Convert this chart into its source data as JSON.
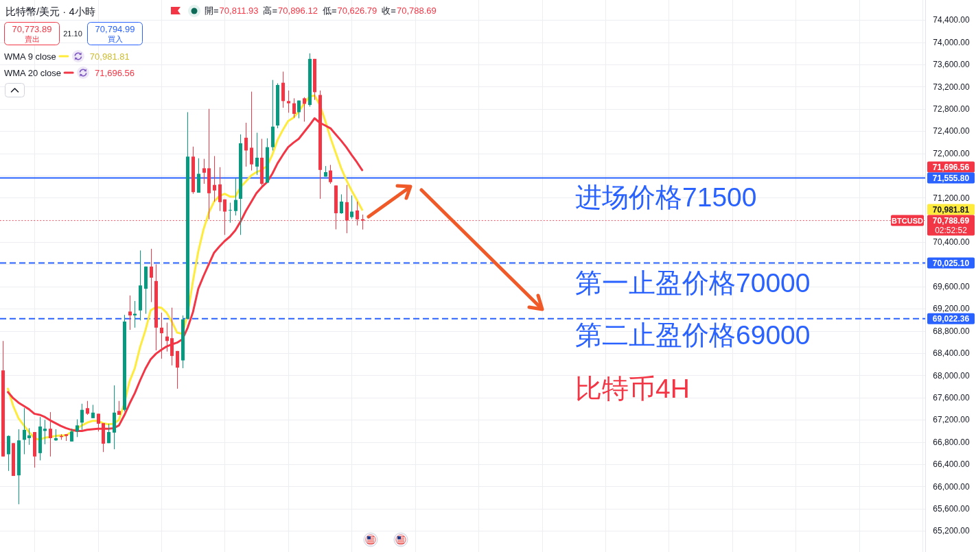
{
  "chart_data": {
    "type": "candlestick",
    "title": "比特幣/美元 · 4小時",
    "categories": [
      null,
      null,
      null,
      null,
      null,
      null,
      null,
      null,
      null,
      null,
      null,
      null,
      null,
      null,
      null,
      null,
      null,
      null,
      null,
      null,
      null,
      null,
      null,
      null,
      null,
      null,
      null,
      null,
      null,
      null,
      null,
      null,
      null,
      null,
      null,
      null,
      null,
      null,
      null,
      null,
      null,
      null,
      null,
      null,
      null,
      null,
      null,
      null,
      null,
      null,
      null,
      null,
      null,
      null,
      null,
      null,
      null,
      null,
      null,
      null,
      null,
      null,
      null,
      null,
      null,
      null,
      null,
      null,
      null,
      null,
      null,
      null,
      null,
      null,
      null,
      null,
      null,
      null,
      null,
      null,
      null,
      null,
      null,
      null,
      null,
      null,
      null,
      null,
      null,
      null,
      null,
      null,
      null,
      null,
      null,
      null,
      null,
      null,
      null,
      null,
      null,
      null,
      null,
      null,
      null,
      null,
      null,
      null,
      null,
      null,
      null,
      null,
      null,
      null,
      null,
      null,
      null,
      null,
      null,
      null,
      null,
      null,
      null,
      null,
      null,
      null,
      null,
      null,
      null,
      null,
      null,
      null,
      null,
      null,
      null,
      null,
      null,
      null,
      null,
      null,
      null,
      null,
      null,
      null,
      null,
      null,
      null,
      null,
      null,
      null,
      null,
      null,
      null,
      null,
      null,
      null,
      null,
      null,
      null,
      null,
      null,
      null,
      null,
      null,
      null,
      null,
      null,
      null,
      null,
      null,
      null,
      null,
      null,
      null,
      null
    ],
    "ohlc": [
      [
        68090,
        68620,
        66540,
        66540
      ],
      [
        66580,
        66920,
        66280,
        66910
      ],
      [
        66780,
        66780,
        66190,
        66190
      ],
      [
        66200,
        67030,
        65680,
        66830
      ],
      [
        66840,
        67410,
        66580,
        67020
      ],
      [
        66870,
        67050,
        66750,
        66920
      ],
      [
        66980,
        66980,
        66340,
        66540
      ],
      [
        66600,
        67250,
        66470,
        67080
      ],
      [
        67000,
        67200,
        66760,
        67040
      ],
      [
        67040,
        67340,
        66540,
        66870
      ],
      [
        66830,
        67030,
        66820,
        66870
      ],
      [
        66910,
        66940,
        66840,
        66890
      ],
      [
        66940,
        66940,
        66820,
        66910
      ],
      [
        66810,
        67040,
        66810,
        66990
      ],
      [
        66990,
        67210,
        66890,
        67100
      ],
      [
        67150,
        67490,
        67020,
        67380
      ],
      [
        67410,
        67540,
        67290,
        67310
      ],
      [
        67230,
        67470,
        67230,
        67330
      ],
      [
        67310,
        67310,
        66990,
        67130
      ],
      [
        67140,
        67140,
        66620,
        66770
      ],
      [
        66780,
        67130,
        66780,
        66980
      ],
      [
        66970,
        67820,
        66670,
        67330
      ],
      [
        67360,
        67540,
        67290,
        67290
      ],
      [
        67380,
        69090,
        67350,
        68970
      ],
      [
        69150,
        69440,
        68820,
        69080
      ],
      [
        69080,
        69340,
        68860,
        69110
      ],
      [
        69170,
        70250,
        68990,
        69620
      ],
      [
        69560,
        69960,
        69110,
        69960
      ],
      [
        69960,
        70280,
        69320,
        69760
      ],
      [
        69700,
        70000,
        68450,
        68860
      ],
      [
        68860,
        69130,
        68300,
        68760
      ],
      [
        68700,
        68950,
        68430,
        68620
      ],
      [
        68670,
        69220,
        68180,
        68350
      ],
      [
        68440,
        68440,
        67760,
        68140
      ],
      [
        68270,
        69080,
        68130,
        69010
      ],
      [
        69020,
        72740,
        69020,
        71940
      ],
      [
        71940,
        72120,
        71270,
        71300
      ],
      [
        71290,
        71910,
        71290,
        71630
      ],
      [
        71730,
        71900,
        71450,
        71650
      ],
      [
        71730,
        72800,
        70810,
        71280
      ],
      [
        71430,
        71950,
        71130,
        71330
      ],
      [
        71440,
        71750,
        70960,
        71120
      ],
      [
        71170,
        71170,
        70530,
        70950
      ],
      [
        70970,
        71110,
        70750,
        70980
      ],
      [
        70960,
        71550,
        70880,
        71160
      ],
      [
        71180,
        72340,
        70530,
        72180
      ],
      [
        72280,
        72550,
        71760,
        72050
      ],
      [
        72100,
        73110,
        71690,
        71800
      ],
      [
        71760,
        72370,
        71610,
        71920
      ],
      [
        71920,
        72260,
        71420,
        71450
      ],
      [
        71470,
        72270,
        71470,
        72110
      ],
      [
        72110,
        73320,
        72050,
        72480
      ],
      [
        72500,
        73260,
        72450,
        73230
      ],
      [
        73270,
        73470,
        72820,
        72940
      ],
      [
        72940,
        73130,
        72730,
        72900
      ],
      [
        72900,
        72990,
        72640,
        72710
      ],
      [
        72740,
        72950,
        72630,
        72950
      ],
      [
        72990,
        73010,
        72570,
        72890
      ],
      [
        72870,
        73800,
        72840,
        73700
      ],
      [
        73700,
        73700,
        72960,
        73100
      ],
      [
        73050,
        73130,
        71180,
        71700
      ],
      [
        71580,
        71770,
        71580,
        71660
      ],
      [
        71690,
        71790,
        71450,
        71480
      ],
      [
        71420,
        71420,
        70630,
        70920
      ],
      [
        70920,
        71260,
        70910,
        71130
      ],
      [
        71120,
        71430,
        70560,
        70790
      ],
      [
        70850,
        71240,
        70820,
        70950
      ],
      [
        70970,
        71130,
        70700,
        70810
      ],
      [
        70811.93,
        70896.12,
        70626.79,
        70788.69
      ],
      null,
      null,
      null,
      null,
      null,
      null,
      null,
      null,
      null,
      null,
      null,
      null,
      null,
      null,
      null,
      null,
      null,
      null,
      null,
      null,
      null,
      null,
      null,
      null,
      null,
      null,
      null,
      null,
      null,
      null,
      null,
      null,
      null,
      null,
      null,
      null,
      null,
      null,
      null,
      null,
      null,
      null,
      null,
      null,
      null,
      null,
      null,
      null,
      null,
      null,
      null,
      null,
      null,
      null,
      null,
      null,
      null,
      null,
      null,
      null,
      null,
      null,
      null,
      null,
      null,
      null,
      null,
      null,
      null,
      null,
      null,
      null,
      null,
      null,
      null,
      null,
      null,
      null,
      null,
      null,
      null,
      null,
      null,
      null,
      null,
      null,
      null,
      null,
      null,
      null,
      null,
      null,
      null,
      null,
      null,
      null,
      null,
      null,
      null,
      null,
      null,
      null,
      null,
      null,
      null,
      null
    ],
    "series": [
      {
        "name": "WMA 9 close",
        "type": "line",
        "color": "#ffeb3b",
        "values": [
          null,
          67760,
          67450,
          67230,
          67100,
          66980,
          66870,
          66840,
          66880,
          66890,
          66910,
          66920,
          66920,
          66980,
          67040,
          67100,
          67150,
          67180,
          67180,
          67140,
          67120,
          67130,
          67200,
          67490,
          67890,
          68130,
          68510,
          68810,
          69170,
          69230,
          69220,
          69130,
          68970,
          68770,
          68750,
          69110,
          69700,
          70230,
          70630,
          70930,
          71130,
          71230,
          71270,
          71220,
          71220,
          71390,
          71490,
          71600,
          71660,
          71700,
          71770,
          71970,
          72240,
          72420,
          72580,
          72640,
          72750,
          72890,
          73020,
          73040,
          72870,
          72590,
          72280,
          72010,
          71740,
          71520,
          71330,
          71160,
          70981.81,
          null,
          null,
          null,
          null,
          null,
          null,
          null,
          null,
          null,
          null,
          null,
          null,
          null,
          null,
          null,
          null,
          null,
          null,
          null,
          null,
          null,
          null,
          null,
          null,
          null,
          null,
          null,
          null,
          null,
          null,
          null,
          null,
          null,
          null,
          null,
          null,
          null,
          null,
          null,
          null,
          null,
          null,
          null,
          null,
          null,
          null,
          null,
          null,
          null,
          null,
          null,
          null,
          null,
          null,
          null,
          null,
          null,
          null,
          null,
          null,
          null,
          null,
          null,
          null,
          null,
          null,
          null,
          null,
          null,
          null,
          null,
          null,
          null,
          null,
          null,
          null,
          null,
          null,
          null,
          null,
          null,
          null,
          null,
          null,
          null,
          null,
          null,
          null,
          null,
          null,
          null,
          null,
          null,
          null,
          null,
          null,
          null,
          null,
          null,
          null,
          null,
          null,
          null,
          null,
          null,
          null
        ]
      },
      {
        "name": "WMA 20 close",
        "type": "line",
        "color": "#f23645",
        "values": [
          null,
          67700,
          67590,
          67510,
          67450,
          67390,
          67310,
          67290,
          67250,
          67190,
          67140,
          67090,
          67050,
          67020,
          67000,
          67000,
          67020,
          67030,
          67040,
          67040,
          67040,
          67050,
          67100,
          67280,
          67490,
          67680,
          67910,
          68120,
          68290,
          68390,
          68460,
          68520,
          68560,
          68590,
          68650,
          68860,
          69140,
          69560,
          69790,
          70000,
          70210,
          70320,
          70420,
          70500,
          70610,
          70770,
          70960,
          71120,
          71280,
          71390,
          71480,
          71630,
          71820,
          71970,
          72110,
          72190,
          72260,
          72380,
          72500,
          72630,
          72550,
          72500,
          72450,
          72340,
          72230,
          72110,
          71970,
          71840,
          71696.56,
          null,
          null,
          null,
          null,
          null,
          null,
          null,
          null,
          null,
          null,
          null,
          null,
          null,
          null,
          null,
          null,
          null,
          null,
          null,
          null,
          null,
          null,
          null,
          null,
          null,
          null,
          null,
          null,
          null,
          null,
          null,
          null,
          null,
          null,
          null,
          null,
          null,
          null,
          null,
          null,
          null,
          null,
          null,
          null,
          null,
          null,
          null,
          null,
          null,
          null,
          null,
          null,
          null,
          null,
          null,
          null,
          null,
          null,
          null,
          null,
          null,
          null,
          null,
          null,
          null,
          null,
          null,
          null,
          null,
          null,
          null,
          null,
          null,
          null,
          null,
          null,
          null,
          null,
          null,
          null,
          null,
          null,
          null,
          null,
          null,
          null,
          null,
          null,
          null,
          null,
          null,
          null,
          null,
          null,
          null,
          null,
          null,
          null,
          null,
          null,
          null,
          null,
          null,
          null,
          null,
          null
        ]
      }
    ],
    "ylim": [
      64820,
      74760
    ],
    "yticks": [
      {
        "value": 65200,
        "label": "65,200.00"
      },
      {
        "value": 65600,
        "label": "65,600.00"
      },
      {
        "value": 66000,
        "label": "66,000.00"
      },
      {
        "value": 66400,
        "label": "66,400.00"
      },
      {
        "value": 66800,
        "label": "66,800.00"
      },
      {
        "value": 67200,
        "label": "67,200.00"
      },
      {
        "value": 67600,
        "label": "67,600.00"
      },
      {
        "value": 68000,
        "label": "68,000.00"
      },
      {
        "value": 68400,
        "label": "68,400.00"
      },
      {
        "value": 68800,
        "label": "68,800.00"
      },
      {
        "value": 69200,
        "label": "69,200.00"
      },
      {
        "value": 69600,
        "label": "69,600.00"
      },
      {
        "value": 70000,
        "label": null
      },
      {
        "value": 70400,
        "label": "70,400.00"
      },
      {
        "value": 70800,
        "label": null
      },
      {
        "value": 71200,
        "label": "71,200.00"
      },
      {
        "value": 71600,
        "label": null
      },
      {
        "value": 72000,
        "label": "72,000.00"
      },
      {
        "value": 72400,
        "label": "72,400.00"
      },
      {
        "value": 72800,
        "label": "72,800.00"
      },
      {
        "value": 73200,
        "label": "73,200.00"
      },
      {
        "value": 73600,
        "label": "73,600.00"
      },
      {
        "value": 74000,
        "label": "74,000.00"
      },
      {
        "value": 74400,
        "label": "74,400.00"
      }
    ],
    "tick_labels": "y",
    "grid": true,
    "legend": "top left",
    "ref_lines": [
      {
        "axis": "y",
        "value": 71555.8,
        "label": "71,555.80",
        "color": "#2962ff",
        "line_style": "solid"
      },
      {
        "axis": "y",
        "value": 70025.1,
        "label": "70,025.10",
        "color": "#2962ff",
        "line_style": "dashed"
      },
      {
        "axis": "y",
        "value": 69022.36,
        "label": "69,022.36",
        "color": "#2962ff",
        "line_style": "dashed"
      },
      {
        "axis": "y",
        "value": 70788.69,
        "label": "70,788.69",
        "color": "#f23645",
        "line_style": "dotted"
      }
    ],
    "annotations": [
      "開=",
      "70,811.93",
      "高=",
      "70,896.12",
      "低=",
      "70,626.79",
      "收=",
      "70,788.69",
      "70,773.89",
      "賣出",
      "21.10",
      "70,794.99",
      "買入",
      "70,981.81",
      "71,696.56",
      "71,696.56",
      "70,981.81",
      "BTCUSD",
      "02:52:52",
      "进场价格71500",
      "第一止盈价格70000",
      "第二止盈价格69000",
      "比特币4H"
    ]
  }
}
